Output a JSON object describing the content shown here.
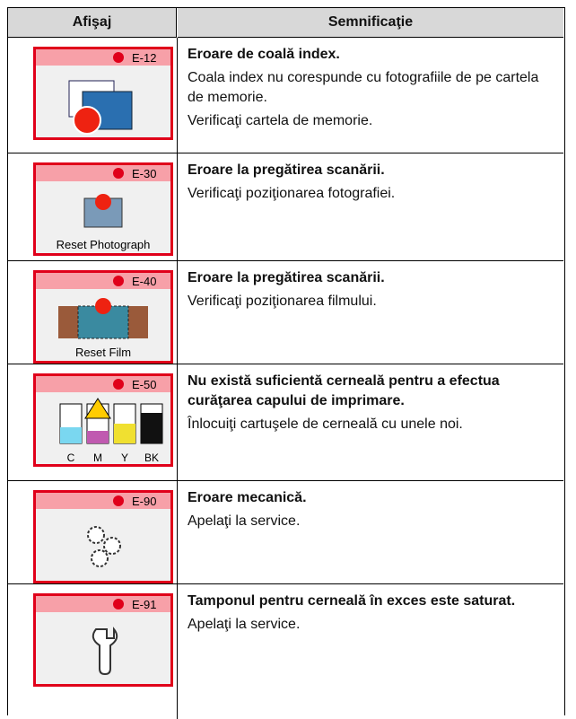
{
  "table": {
    "headers": [
      "Afişaj",
      "Semnificaţie"
    ],
    "rows": [
      {
        "code": "E-12",
        "title": "Eroare de coală index.",
        "lines": [
          "Coala index nu corespunde cu fotografiile de pe cartela de memorie.",
          "Verificaţi cartela de memorie."
        ]
      },
      {
        "code": "E-30",
        "caption": "Reset Photograph",
        "title": "Eroare la pregătirea scanării.",
        "lines": [
          "Verificaţi poziţionarea fotografiei."
        ]
      },
      {
        "code": "E-40",
        "caption": "Reset Film",
        "title": "Eroare la pregătirea scanării.",
        "lines": [
          "Verificaţi poziţionarea filmului."
        ]
      },
      {
        "code": "E-50",
        "inks": [
          "C",
          "M",
          "Y",
          "BK"
        ],
        "title": "Nu există suficientă cerneală pentru a efectua curăţarea capului de imprimare.",
        "lines": [
          "Înlocuiţi cartuşele de cerneală cu unele noi."
        ]
      },
      {
        "code": "E-90",
        "title": "Eroare mecanică.",
        "lines": [
          "Apelaţi la service."
        ]
      },
      {
        "code": "E-91",
        "title": "Tamponul pentru cerneală în exces este saturat.",
        "lines": [
          "Apelaţi la service."
        ]
      }
    ]
  }
}
